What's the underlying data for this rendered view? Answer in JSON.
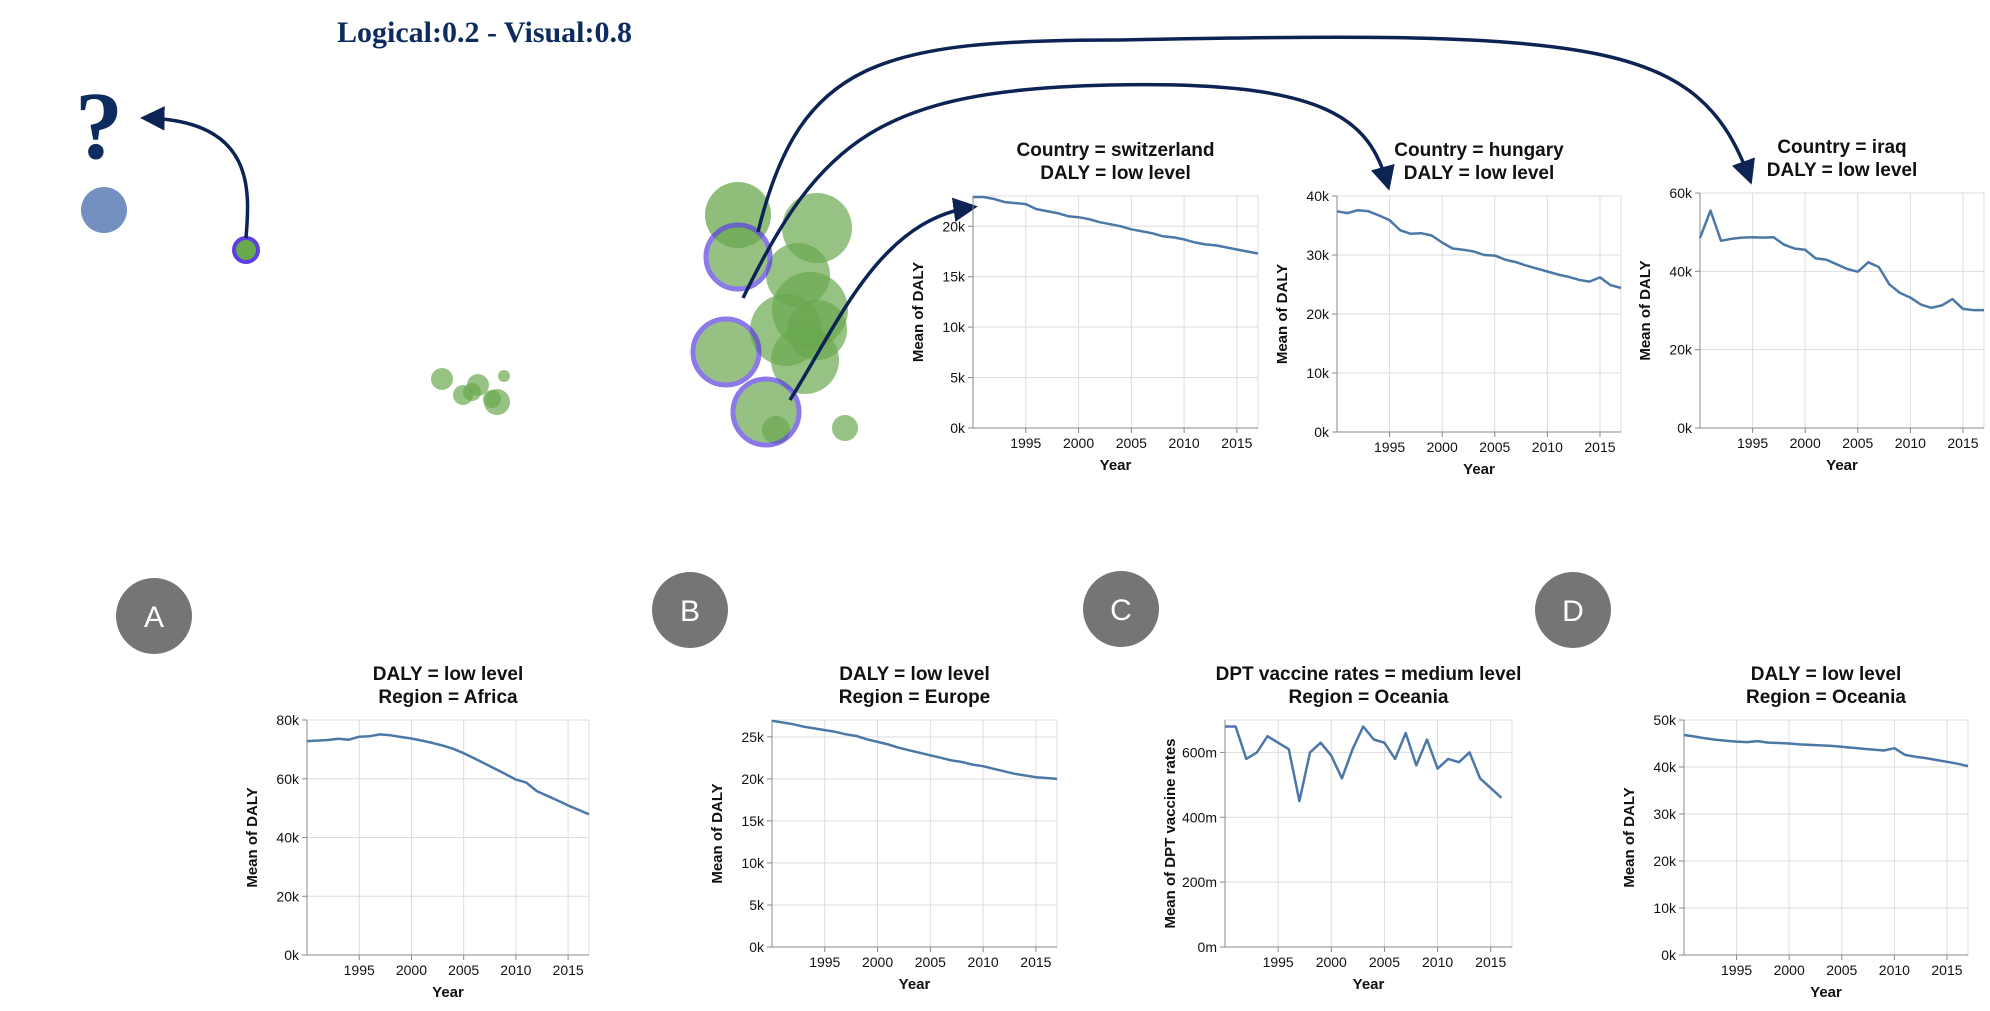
{
  "header": {
    "title": "Logical:0.2 -  Visual:0.8"
  },
  "question_mark": "?",
  "badges": [
    "A",
    "B",
    "C",
    "D"
  ],
  "colors": {
    "line": "#4c78a8",
    "grid": "#dddddd",
    "arrow": "#0d2354",
    "badge": "#757575",
    "bubble": "#6aa84f",
    "highlight": "#5b3fe0",
    "faded_point": "#5a7db5"
  },
  "chart_data": [
    {
      "type": "line",
      "title": [
        "Country = switzerland",
        "DALY = low level"
      ],
      "xlabel": "Year",
      "ylabel": "Mean of DALY",
      "xlim": [
        1990,
        2017
      ],
      "ylim": [
        0,
        23000
      ],
      "xticks": [
        1995,
        2000,
        2005,
        2010,
        2015
      ],
      "xtick_labels": [
        "1995",
        "2000",
        "2005",
        "2010",
        "2015"
      ],
      "yticks": [
        0,
        5000,
        10000,
        15000,
        20000
      ],
      "ytick_labels": [
        "0k",
        "5k",
        "10k",
        "15k",
        "20k"
      ],
      "x": [
        1990,
        1991,
        1992,
        1993,
        1994,
        1995,
        1996,
        1997,
        1998,
        1999,
        2000,
        2001,
        2002,
        2003,
        2004,
        2005,
        2006,
        2007,
        2008,
        2009,
        2010,
        2011,
        2012,
        2013,
        2014,
        2015,
        2016,
        2017
      ],
      "series": [
        {
          "values": [
            22900,
            22900,
            22700,
            22400,
            22300,
            22200,
            21700,
            21500,
            21300,
            21000,
            20900,
            20700,
            20400,
            20200,
            20000,
            19700,
            19500,
            19300,
            19000,
            18900,
            18700,
            18400,
            18200,
            18100,
            17900,
            17700,
            17500,
            17300
          ]
        }
      ]
    },
    {
      "type": "line",
      "title": [
        "Country = hungary",
        "DALY = low level"
      ],
      "xlabel": "Year",
      "ylabel": "Mean of DALY",
      "xlim": [
        1990,
        2017
      ],
      "ylim": [
        0,
        40000
      ],
      "xticks": [
        1995,
        2000,
        2005,
        2010,
        2015
      ],
      "xtick_labels": [
        "1995",
        "2000",
        "2005",
        "2010",
        "2015"
      ],
      "yticks": [
        0,
        10000,
        20000,
        30000,
        40000
      ],
      "ytick_labels": [
        "0k",
        "10k",
        "20k",
        "30k",
        "40k"
      ],
      "x": [
        1990,
        1991,
        1992,
        1993,
        1994,
        1995,
        1996,
        1997,
        1998,
        1999,
        2000,
        2001,
        2002,
        2003,
        2004,
        2005,
        2006,
        2007,
        2008,
        2009,
        2010,
        2011,
        2012,
        2013,
        2014,
        2015,
        2016,
        2017
      ],
      "series": [
        {
          "values": [
            37400,
            37100,
            37600,
            37400,
            36700,
            35900,
            34200,
            33600,
            33700,
            33300,
            32100,
            31100,
            30900,
            30600,
            30000,
            29900,
            29200,
            28800,
            28200,
            27700,
            27200,
            26700,
            26300,
            25800,
            25500,
            26200,
            24900,
            24400
          ]
        }
      ]
    },
    {
      "type": "line",
      "title": [
        "Country = iraq",
        "DALY = low level"
      ],
      "xlabel": "Year",
      "ylabel": "Mean of DALY",
      "xlim": [
        1990,
        2017
      ],
      "ylim": [
        0,
        60000
      ],
      "xticks": [
        1995,
        2000,
        2005,
        2010,
        2015
      ],
      "xtick_labels": [
        "1995",
        "2000",
        "2005",
        "2010",
        "2015"
      ],
      "yticks": [
        0,
        20000,
        40000,
        60000
      ],
      "ytick_labels": [
        "0k",
        "20k",
        "40k",
        "60k"
      ],
      "x": [
        1990,
        1991,
        1992,
        1993,
        1994,
        1995,
        1996,
        1997,
        1998,
        1999,
        2000,
        2001,
        2002,
        2003,
        2004,
        2005,
        2006,
        2007,
        2008,
        2009,
        2010,
        2011,
        2012,
        2013,
        2014,
        2015,
        2016,
        2017
      ],
      "series": [
        {
          "values": [
            48500,
            55500,
            47800,
            48300,
            48600,
            48700,
            48600,
            48700,
            46800,
            45800,
            45500,
            43300,
            43000,
            41800,
            40600,
            39900,
            42300,
            41100,
            36700,
            34500,
            33300,
            31500,
            30700,
            31300,
            32900,
            30400,
            30100,
            30100
          ]
        }
      ]
    },
    {
      "type": "line",
      "title": [
        "DALY = low level",
        "Region = Africa"
      ],
      "xlabel": "Year",
      "ylabel": "Mean of DALY",
      "xlim": [
        1990,
        2017
      ],
      "ylim": [
        0,
        80000
      ],
      "xticks": [
        1995,
        2000,
        2005,
        2010,
        2015
      ],
      "xtick_labels": [
        "1995",
        "2000",
        "2005",
        "2010",
        "2015"
      ],
      "yticks": [
        0,
        20000,
        40000,
        60000,
        80000
      ],
      "ytick_labels": [
        "0k",
        "20k",
        "40k",
        "60k",
        "80k"
      ],
      "x": [
        1990,
        1991,
        1992,
        1993,
        1994,
        1995,
        1996,
        1997,
        1998,
        1999,
        2000,
        2001,
        2002,
        2003,
        2004,
        2005,
        2006,
        2007,
        2008,
        2009,
        2010,
        2011,
        2012,
        2013,
        2014,
        2015,
        2016,
        2017
      ],
      "series": [
        {
          "values": [
            72800,
            73000,
            73200,
            73600,
            73300,
            74300,
            74500,
            75100,
            74800,
            74200,
            73700,
            73000,
            72200,
            71300,
            70200,
            68700,
            67000,
            65200,
            63400,
            61600,
            59700,
            58700,
            55800,
            54200,
            52600,
            50900,
            49400,
            47900
          ]
        }
      ]
    },
    {
      "type": "line",
      "title": [
        "DALY = low level",
        "Region = Europe"
      ],
      "xlabel": "Year",
      "ylabel": "Mean of DALY",
      "xlim": [
        1990,
        2017
      ],
      "ylim": [
        0,
        27000
      ],
      "xticks": [
        1995,
        2000,
        2005,
        2010,
        2015
      ],
      "xtick_labels": [
        "1995",
        "2000",
        "2005",
        "2010",
        "2015"
      ],
      "yticks": [
        0,
        5000,
        10000,
        15000,
        20000,
        25000
      ],
      "ytick_labels": [
        "0k",
        "5k",
        "10k",
        "15k",
        "20k",
        "25k"
      ],
      "x": [
        1990,
        1991,
        1992,
        1993,
        1994,
        1995,
        1996,
        1997,
        1998,
        1999,
        2000,
        2001,
        2002,
        2003,
        2004,
        2005,
        2006,
        2007,
        2008,
        2009,
        2010,
        2011,
        2012,
        2013,
        2014,
        2015,
        2016,
        2017
      ],
      "series": [
        {
          "values": [
            26900,
            26700,
            26500,
            26200,
            26000,
            25800,
            25600,
            25300,
            25100,
            24700,
            24400,
            24100,
            23700,
            23400,
            23100,
            22800,
            22500,
            22200,
            22000,
            21700,
            21500,
            21200,
            20900,
            20600,
            20400,
            20200,
            20100,
            20000
          ]
        }
      ]
    },
    {
      "type": "line",
      "title": [
        "DPT vaccine rates = medium level",
        "Region = Oceania"
      ],
      "xlabel": "Year",
      "ylabel": "Mean of DPT vaccine rates",
      "xlim": [
        1990,
        2017
      ],
      "ylim": [
        0,
        0.7
      ],
      "xticks": [
        1995,
        2000,
        2005,
        2010,
        2015
      ],
      "xtick_labels": [
        "1995",
        "2000",
        "2005",
        "2010",
        "2015"
      ],
      "yticks": [
        0,
        0.2,
        0.4,
        0.6
      ],
      "ytick_labels": [
        "0m",
        "200m",
        "400m",
        "600m"
      ],
      "x": [
        1990,
        1991,
        1992,
        1993,
        1994,
        1995,
        1996,
        1997,
        1998,
        1999,
        2000,
        2001,
        2002,
        2003,
        2004,
        2005,
        2006,
        2007,
        2008,
        2009,
        2010,
        2011,
        2012,
        2013,
        2014,
        2015,
        2016
      ],
      "series": [
        {
          "values": [
            0.68,
            0.68,
            0.58,
            0.6,
            0.65,
            0.63,
            0.61,
            0.45,
            0.6,
            0.63,
            0.59,
            0.52,
            0.61,
            0.68,
            0.64,
            0.63,
            0.58,
            0.66,
            0.56,
            0.64,
            0.55,
            0.58,
            0.57,
            0.6,
            0.52,
            0.49,
            0.46
          ]
        }
      ]
    },
    {
      "type": "line",
      "title": [
        "DALY = low level",
        "Region = Oceania"
      ],
      "xlabel": "Year",
      "ylabel": "Mean of DALY",
      "xlim": [
        1990,
        2017
      ],
      "ylim": [
        0,
        50000
      ],
      "xticks": [
        1995,
        2000,
        2005,
        2010,
        2015
      ],
      "xtick_labels": [
        "1995",
        "2000",
        "2005",
        "2010",
        "2015"
      ],
      "yticks": [
        0,
        10000,
        20000,
        30000,
        40000,
        50000
      ],
      "ytick_labels": [
        "0k",
        "10k",
        "20k",
        "30k",
        "40k",
        "50k"
      ],
      "x": [
        1990,
        1991,
        1992,
        1993,
        1994,
        1995,
        1996,
        1997,
        1998,
        1999,
        2000,
        2001,
        2002,
        2003,
        2004,
        2005,
        2006,
        2007,
        2008,
        2009,
        2010,
        2011,
        2012,
        2013,
        2014,
        2015,
        2016,
        2017
      ],
      "series": [
        {
          "values": [
            46800,
            46500,
            46100,
            45800,
            45600,
            45400,
            45300,
            45500,
            45200,
            45100,
            45000,
            44800,
            44700,
            44600,
            44500,
            44300,
            44100,
            43900,
            43700,
            43500,
            44000,
            42600,
            42200,
            41900,
            41500,
            41100,
            40700,
            40200
          ]
        }
      ]
    }
  ]
}
